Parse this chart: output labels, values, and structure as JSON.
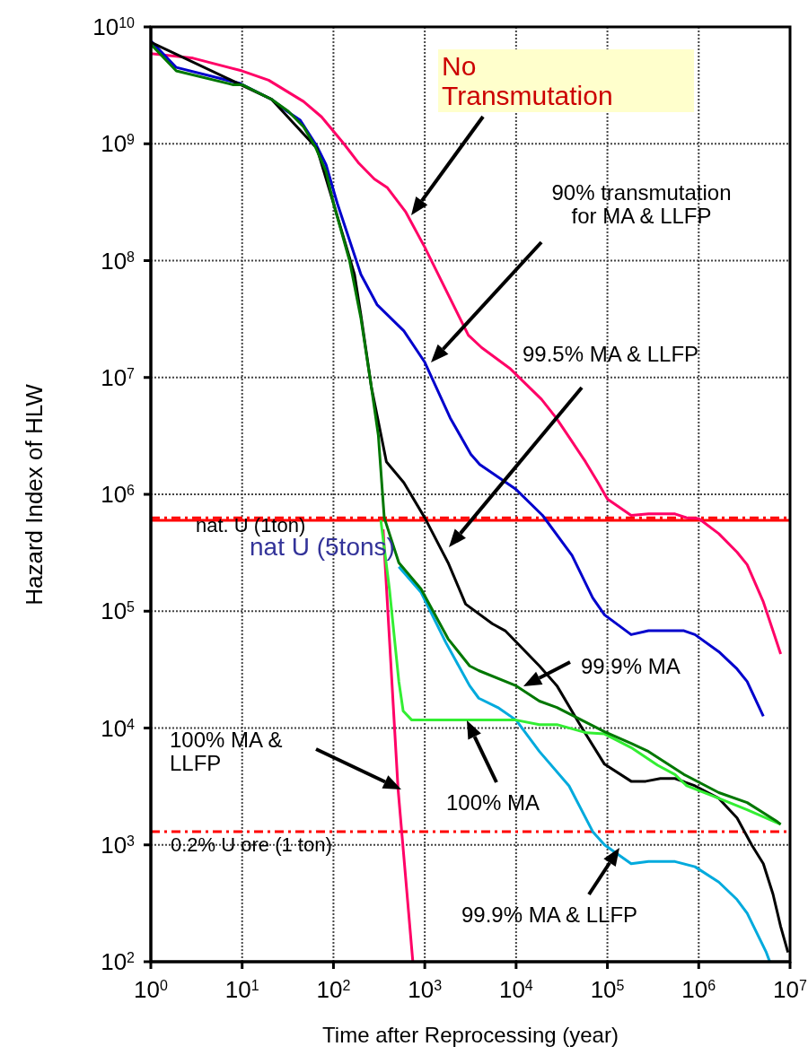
{
  "chart_data": {
    "type": "line",
    "xlabel": "Time after Reprocessing (year)",
    "ylabel": "Hazard Index of HLW",
    "log": "xy",
    "grid": true,
    "xlim": [
      1,
      10000000
    ],
    "ylim": [
      100,
      10000000000
    ],
    "xticks": [
      {
        "value": 1,
        "label": "10$^{0}$"
      },
      {
        "value": 10,
        "label": "10$^{1}$"
      },
      {
        "value": 100,
        "label": "10$^{2}$"
      },
      {
        "value": 1000,
        "label": "10$^{3}$"
      },
      {
        "value": 10000,
        "label": "10$^{4}$"
      },
      {
        "value": 100000,
        "label": "10$^{5}$"
      },
      {
        "value": 1000000,
        "label": "10$^{6}$"
      },
      {
        "value": 10000000,
        "label": "10$^{7}$"
      }
    ],
    "yticks": [
      {
        "value": 100,
        "label": "10$^{2}$"
      },
      {
        "value": 1000,
        "label": "10$^{3}$"
      },
      {
        "value": 10000,
        "label": "10$^{4}$"
      },
      {
        "value": 100000,
        "label": "10$^{5}$"
      },
      {
        "value": 1000000,
        "label": "10$^{6}$"
      },
      {
        "value": 10000000,
        "label": "10$^{7}$"
      },
      {
        "value": 100000000,
        "label": "10$^{8}$"
      },
      {
        "value": 1000000000,
        "label": "10$^{9}$"
      },
      {
        "value": 10000000000,
        "label": "10$^{10}$"
      }
    ],
    "series": [
      {
        "color": "#ff0066",
        "x": [
          1,
          2.9,
          10,
          19.5,
          47,
          74,
          130,
          190,
          280,
          390,
          620,
          1000,
          3000,
          4200,
          8500,
          19000,
          27500,
          39000,
          57500,
          79000,
          100000,
          182000,
          282000,
          550000,
          740000,
          1000000,
          1660000,
          2630000,
          3390000,
          5100000,
          6500000,
          7900000
        ],
        "values": [
          5900000000.0,
          5400000000.0,
          4200000000.0,
          3500000000.0,
          2300000000.0,
          1700000000.0,
          1000000000.0,
          680000000.0,
          500000000.0,
          420000000.0,
          260000000.0,
          130000000.0,
          23000000.0,
          18000000.0,
          12000000.0,
          6500000.0,
          4500000.0,
          3000000.0,
          1900000.0,
          1260000.0,
          910000.0,
          660000.0,
          680000.0,
          680000.0,
          630000.0,
          620000.0,
          460000.0,
          320000.0,
          250000.0,
          120000.0,
          68000.0,
          43000.0
        ]
      },
      {
        "color": "#0000cc",
        "x": [
          1,
          1.9,
          9.3,
          21,
          31,
          43,
          66,
          83,
          110,
          200,
          300,
          590,
          1000,
          1900,
          3200,
          4000,
          10000,
          19500,
          41000,
          69000,
          93000,
          182000,
          282000,
          690000,
          910000,
          1660000,
          2630000,
          3390000,
          5100000
        ],
        "values": [
          7600000000.0,
          4500000000.0,
          3300000000.0,
          2400000000.0,
          1900000000.0,
          1600000000.0,
          950000000.0,
          660000000.0,
          310000000.0,
          76000000.0,
          42000000.0,
          25000000.0,
          13500000.0,
          4500000.0,
          2200000.0,
          1800000.0,
          1100000.0,
          660000.0,
          300000.0,
          130000.0,
          93000.0,
          63000.0,
          68000.0,
          68000.0,
          63000.0,
          45000.0,
          32000.0,
          25000.0,
          12600.0
        ]
      },
      {
        "color": "#000000",
        "x": [
          1,
          21,
          66,
          100,
          170,
          200,
          260,
          380,
          590,
          1000,
          1800,
          2800,
          5500,
          7600,
          18000,
          28000,
          50000,
          93000,
          182000,
          263000,
          380000,
          550000,
          910000,
          1660000,
          2630000,
          3800000,
          5100000,
          6500000,
          7900000,
          9500000
        ],
        "values": [
          7400000000.0,
          2400000000.0,
          910000000.0,
          310000000.0,
          76000000.0,
          34000000.0,
          8300000.0,
          1900000.0,
          1260000.0,
          630000.0,
          260000.0,
          115000.0,
          78000.0,
          68000.0,
          34000.0,
          23000.0,
          10700.0,
          4900,
          3500,
          3500,
          3700,
          3700,
          3200,
          2500,
          1700,
          1000,
          690,
          380,
          200,
          120
        ]
      },
      {
        "color": "#ff0066",
        "x": [
          350,
          510,
          740
        ],
        "values": [
          500000.0,
          3000,
          100
        ]
      },
      {
        "color": "#00aadd",
        "x": [
          520,
          910,
          1700,
          3100,
          3900,
          6300,
          10000,
          18000,
          38000,
          69000,
          93000,
          182000,
          282000,
          550000,
          910000,
          1660000,
          2630000,
          3390000,
          5500000,
          6000000
        ],
        "values": [
          240000.0,
          145000.0,
          54000.0,
          23000.0,
          18000.0,
          15000.0,
          11700.0,
          6300,
          3200,
          1300,
          1000,
          690,
          720,
          720,
          650,
          480,
          340,
          260,
          120,
          100
        ]
      },
      {
        "color": "#33ee33",
        "x": [
          330,
          410,
          520,
          580,
          720,
          10000,
          18000,
          28000,
          59000,
          93000,
          182000,
          355000,
          550000,
          740000,
          1660000,
          3390000,
          7900000
        ],
        "values": [
          600000.0,
          155000.0,
          25000.0,
          14000.0,
          11700.0,
          11700.0,
          10700.0,
          10700.0,
          9100,
          8900,
          6800,
          4800,
          4000,
          3200,
          2500,
          2000,
          1500
        ]
      },
      {
        "color": "#007700",
        "x": [
          1,
          1.9,
          8,
          10,
          21,
          32,
          47,
          63,
          83,
          100,
          150,
          200,
          260,
          310,
          360,
          520,
          910,
          1800,
          3100,
          3900,
          10000,
          18000,
          28000,
          93000,
          182000,
          282000,
          690000,
          1660000,
          3390000,
          7100000,
          7900000
        ],
        "values": [
          7100000000.0,
          4200000000.0,
          3200000000.0,
          3200000000.0,
          2400000000.0,
          1900000000.0,
          1400000000.0,
          950000000.0,
          580000000.0,
          310000000.0,
          100000000.0,
          32000000.0,
          8300000.0,
          3200000.0,
          630000.0,
          260000.0,
          155000.0,
          58000.0,
          34000.0,
          31000.0,
          23000.0,
          17000.0,
          15000.0,
          9300,
          7400,
          6300,
          4000,
          2800,
          2300,
          1600,
          1500
        ]
      }
    ],
    "ref_lines": [
      {
        "axis": "y",
        "value": 630000,
        "label": "nat. U (1ton)",
        "color": "#ff0000",
        "line_style": "dashed"
      },
      {
        "axis": "y",
        "value": 600000,
        "label": "nat U (5tons)",
        "color": "#ff0000",
        "line_style": "solid"
      },
      {
        "axis": "y",
        "value": 1300,
        "label": "0.2% U ore (1 ton)",
        "color": "#ff0000",
        "line_style": "dashed"
      }
    ],
    "annotations": [
      "No Transmutation",
      "90% transmutation for MA & LLFP",
      "99.5% MA & LLFP",
      "99.9% MA",
      "100% MA",
      "99.9% MA & LLFP",
      "100% MA & LLFP"
    ]
  }
}
